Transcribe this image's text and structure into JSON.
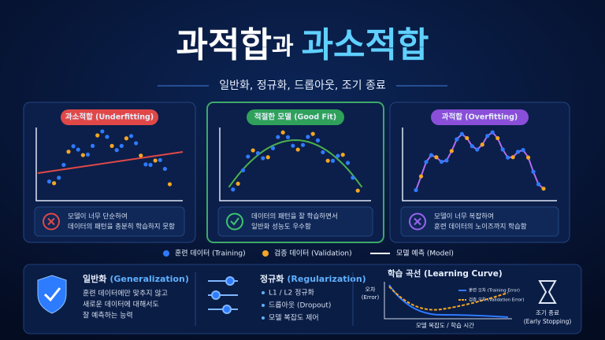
{
  "header": {
    "title_part1": "과적합",
    "title_connector": "과",
    "title_part2": "과소적합",
    "subtitle": "일반화, 정규화, 드롭아웃, 조기 종료"
  },
  "panels": [
    {
      "label": "과소적합 (Underfitting)",
      "caption": [
        "모델이 너무 단순하여",
        "데이터의 패턴을 충분히 학습하지 못함"
      ]
    },
    {
      "label": "적절한 모델 (Good Fit)",
      "caption": [
        "데이터의 패턴을 잘 학습하면서",
        "일반화 성능도 우수함"
      ]
    },
    {
      "label": "과적합 (Overfitting)",
      "caption": [
        "모델이 너무 복잡하여",
        "훈련 데이터의 노이즈까지 학습함"
      ]
    }
  ],
  "legend": [
    "훈련 데이터 (Training)",
    "검증 데이터 (Validation)",
    "모델 예측 (Model)"
  ],
  "generalization": {
    "title": "일반화",
    "title_en": "(Generalization)",
    "lines": [
      "훈련 데이터에만 맞추지 않고",
      "새로운 데이터에 대해서도",
      "잘 예측하는 능력"
    ]
  },
  "regularization": {
    "title": "정규화",
    "title_en": "(Regularization)",
    "items": [
      "L1 / L2 정규화",
      "드롭아웃 (Dropout)",
      "모델 복잡도 제어"
    ]
  },
  "learning_curve": {
    "title": "학습 곡선 (Learning Curve)",
    "y_label": [
      "오차",
      "(Error)"
    ],
    "x_label": "모델 복잡도 / 학습 시간",
    "legend": [
      "훈련 오차 (Training Error)",
      "검증 오차 (Validation Error)"
    ]
  },
  "early_stopping": {
    "label": [
      "조기 종료",
      "(Early Stopping)"
    ]
  }
}
